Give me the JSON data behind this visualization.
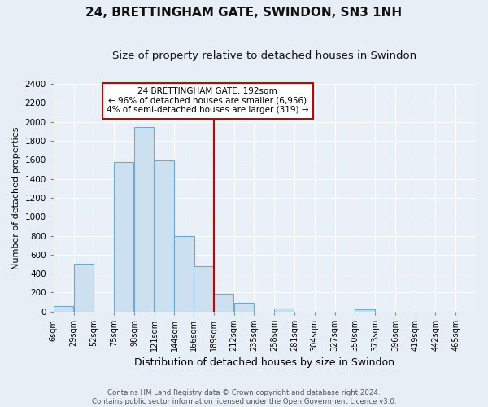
{
  "title": "24, BRETTINGHAM GATE, SWINDON, SN3 1NH",
  "subtitle": "Size of property relative to detached houses in Swindon",
  "xlabel": "Distribution of detached houses by size in Swindon",
  "ylabel": "Number of detached properties",
  "bar_left_edges": [
    6,
    29,
    52,
    75,
    98,
    121,
    144,
    166,
    189,
    212,
    235,
    258,
    281,
    304,
    327,
    350,
    373,
    396,
    419,
    442
  ],
  "bar_heights": [
    55,
    500,
    0,
    1580,
    1950,
    1590,
    800,
    480,
    190,
    90,
    0,
    35,
    0,
    0,
    0,
    20,
    0,
    0,
    0,
    0
  ],
  "bin_width": 23,
  "tick_labels": [
    "6sqm",
    "29sqm",
    "52sqm",
    "75sqm",
    "98sqm",
    "121sqm",
    "144sqm",
    "166sqm",
    "189sqm",
    "212sqm",
    "235sqm",
    "258sqm",
    "281sqm",
    "304sqm",
    "327sqm",
    "350sqm",
    "373sqm",
    "396sqm",
    "419sqm",
    "442sqm",
    "465sqm"
  ],
  "bar_color": "#cce0f0",
  "bar_edge_color": "#6aaad4",
  "vline_x": 189,
  "vline_color": "#cc0000",
  "annotation_title": "24 BRETTINGHAM GATE: 192sqm",
  "annotation_line1": "← 96% of detached houses are smaller (6,956)",
  "annotation_line2": "4% of semi-detached houses are larger (319) →",
  "annotation_box_color": "#ffffff",
  "annotation_box_edgecolor": "#cc0000",
  "ylim": [
    0,
    2400
  ],
  "yticks": [
    0,
    200,
    400,
    600,
    800,
    1000,
    1200,
    1400,
    1600,
    1800,
    2000,
    2200,
    2400
  ],
  "footer_line1": "Contains HM Land Registry data © Crown copyright and database right 2024.",
  "footer_line2": "Contains public sector information licensed under the Open Government Licence v3.0.",
  "bg_color": "#e8eef5",
  "plot_bg_color": "#eaf0f8",
  "grid_color": "#ffffff",
  "title_fontsize": 11,
  "subtitle_fontsize": 9.5,
  "tick_fontsize": 7,
  "ylabel_fontsize": 8,
  "xlabel_fontsize": 9
}
